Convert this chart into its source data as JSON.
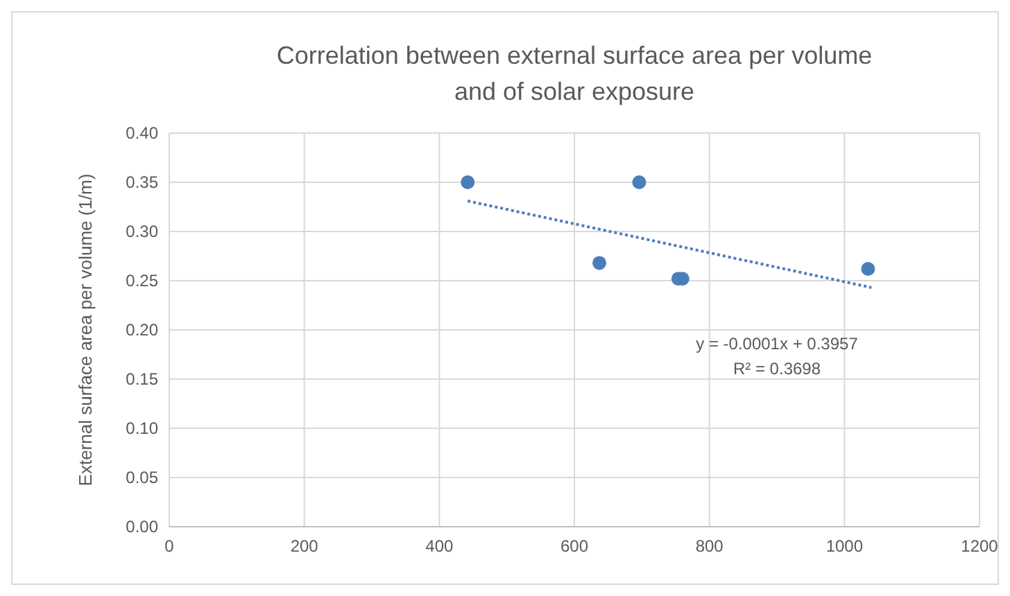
{
  "chart_data": {
    "type": "scatter",
    "title": "Correlation between external surface area per volume and of solar exposure",
    "ylabel": "External surface area per volume (1/m)",
    "series": [
      {
        "color": "#4a7ebb",
        "marker": "circle",
        "x": [
          442,
          637,
          696,
          754,
          760,
          1035
        ],
        "values": [
          0.35,
          0.268,
          0.35,
          0.252,
          0.252,
          0.262
        ]
      },
      {
        "type": "line",
        "color": "#4a7ebb",
        "x": [
          442,
          1040
        ],
        "values": [
          0.331,
          0.243
        ],
        "line_style": "dotted"
      }
    ],
    "xlim": [
      0,
      1200
    ],
    "xticks": [
      0,
      200,
      400,
      600,
      800,
      1000,
      1200
    ],
    "ylim": [
      0,
      0.4
    ],
    "yticks": [
      {
        "value": 0,
        "label": "0.00"
      },
      {
        "value": 0.05,
        "label": "0.05"
      },
      {
        "value": 0.1,
        "label": "0.10"
      },
      {
        "value": 0.15,
        "label": "0.15"
      },
      {
        "value": 0.2,
        "label": "0.20"
      },
      {
        "value": 0.25,
        "label": "0.25"
      },
      {
        "value": 0.3,
        "label": "0.30"
      },
      {
        "value": 0.35,
        "label": "0.35"
      },
      {
        "value": 0.4,
        "label": "0.40"
      }
    ],
    "grid": true,
    "annotations": [
      "y = -0.0001x + 0.3957",
      "R² = 0.3698"
    ]
  }
}
